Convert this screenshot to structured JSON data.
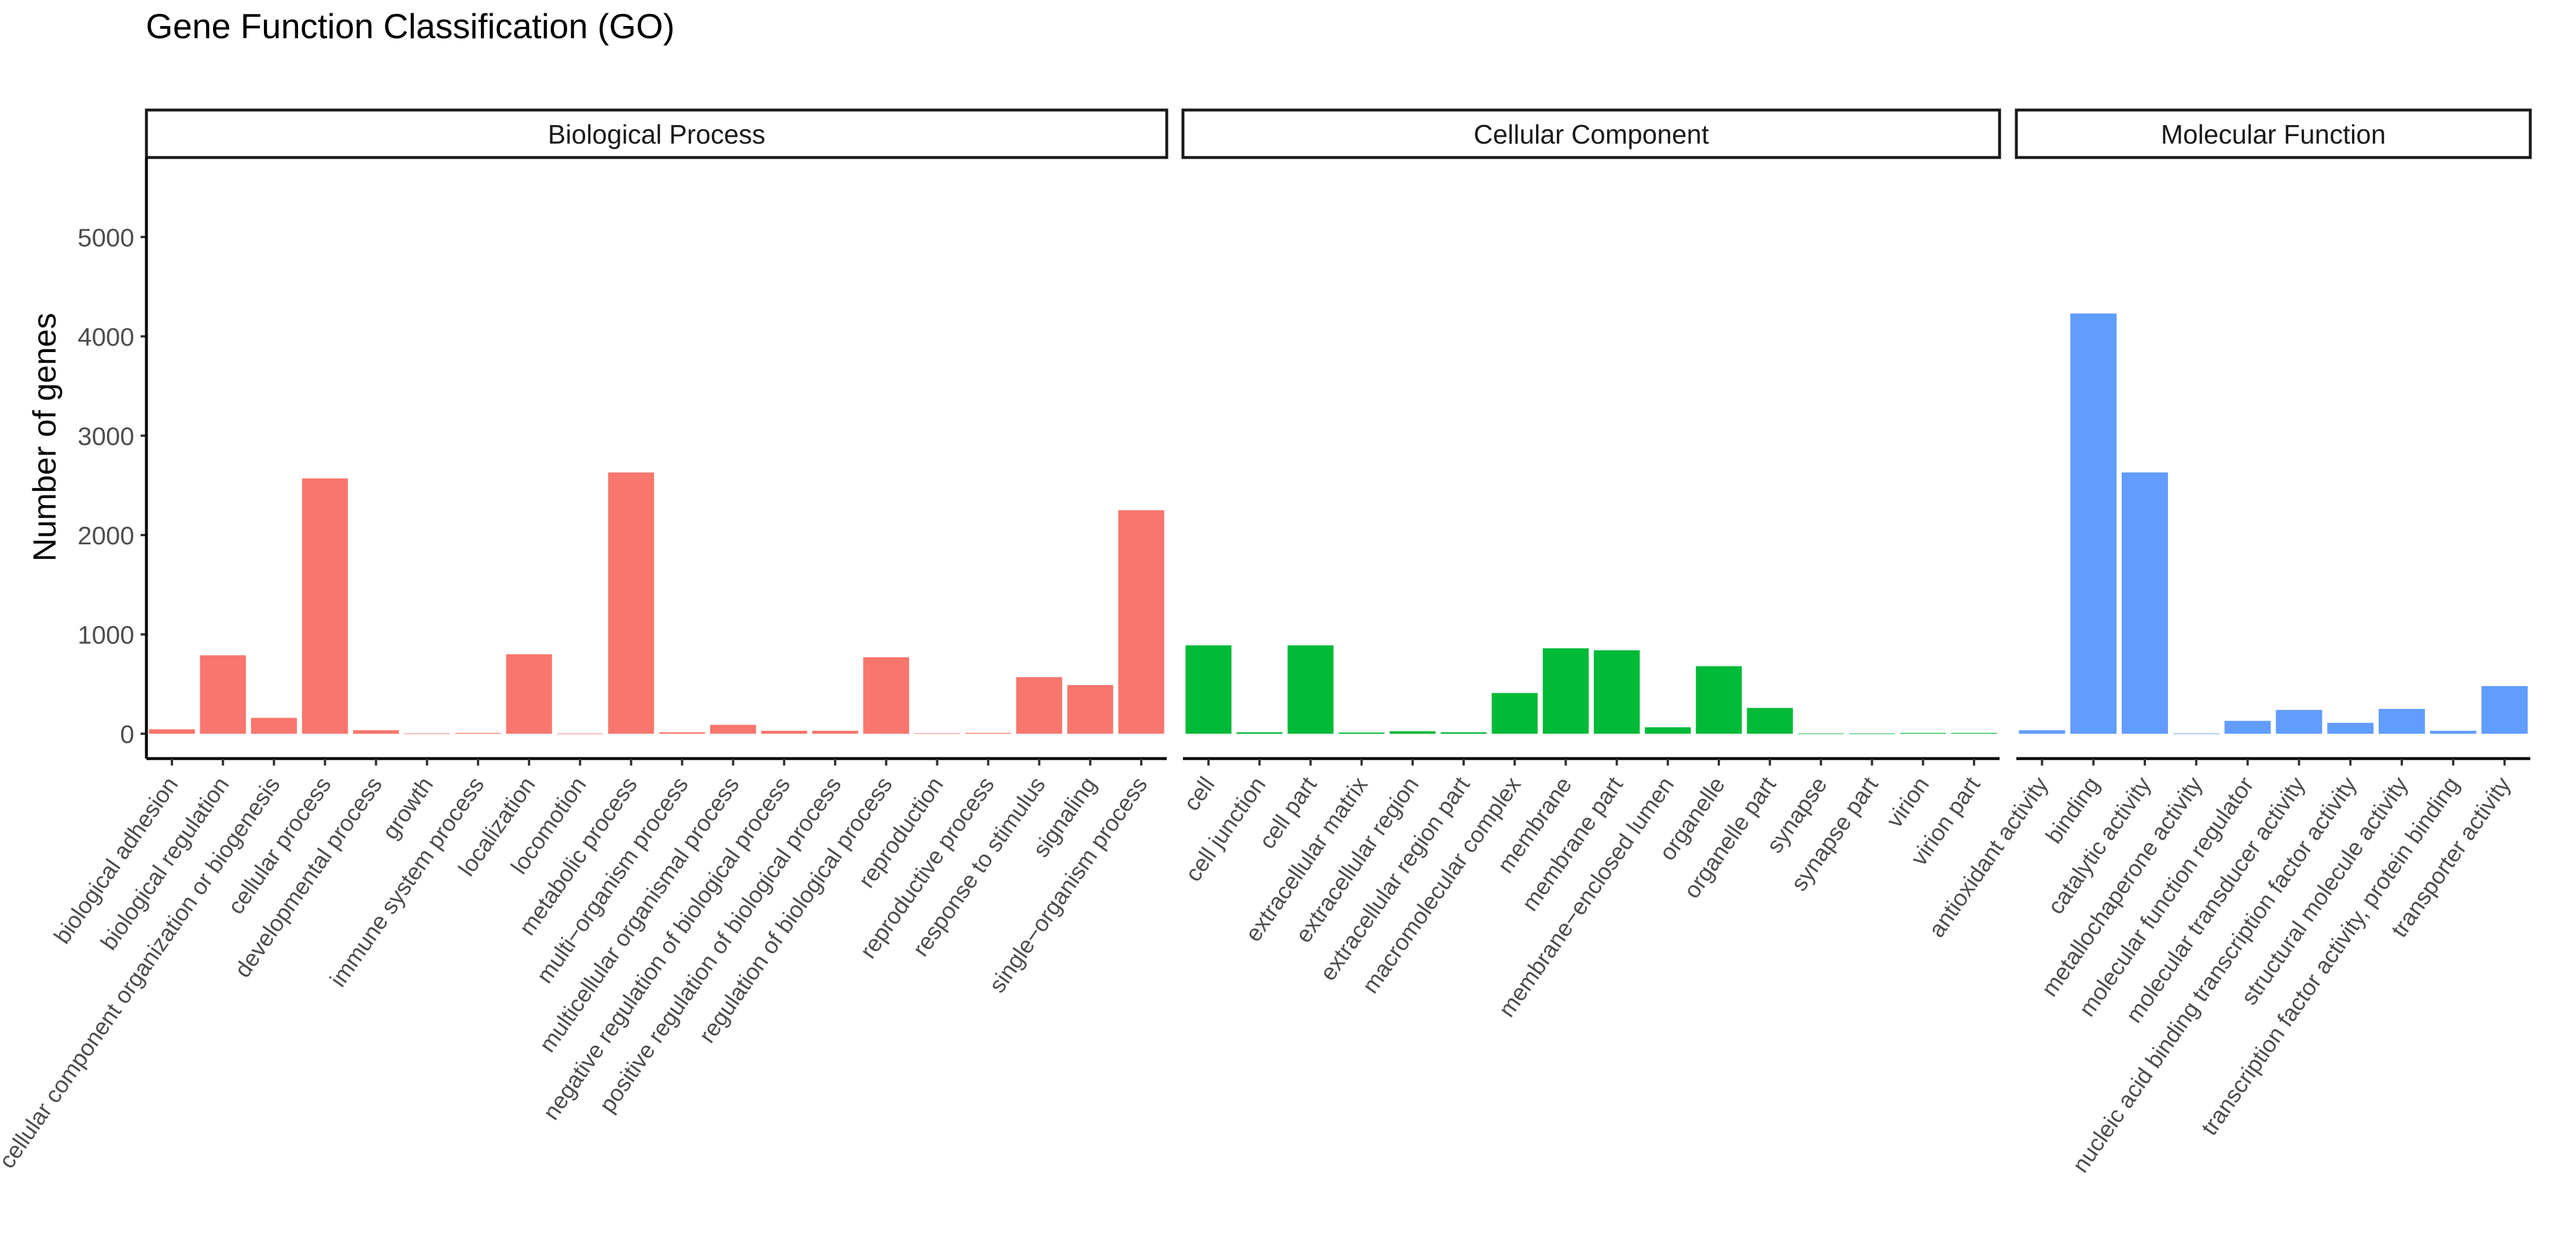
{
  "chart_data": {
    "type": "bar",
    "title": "Gene Function Classification (GO)",
    "ylabel": "Number of genes",
    "xlabel": "",
    "ylim": [
      -250,
      5800
    ],
    "yticks": [
      0,
      1000,
      2000,
      3000,
      4000,
      5000
    ],
    "grid": false,
    "legend": "none",
    "facets": [
      {
        "name": "Biological Process",
        "color": "#F8766D",
        "categories": [
          "biological adhesion",
          "biological regulation",
          "cellular component organization or biogenesis",
          "cellular process",
          "developmental process",
          "growth",
          "immune system process",
          "localization",
          "locomotion",
          "metabolic process",
          "multi−organism process",
          "multicellular organismal process",
          "negative regulation of biological process",
          "positive regulation of biological process",
          "regulation of biological process",
          "reproduction",
          "reproductive process",
          "response to stimulus",
          "signaling",
          "single−organism process"
        ],
        "values": [
          45,
          790,
          160,
          2570,
          35,
          3,
          8,
          800,
          2,
          2630,
          15,
          90,
          30,
          30,
          770,
          5,
          8,
          570,
          490,
          2250
        ]
      },
      {
        "name": "Cellular Component",
        "color": "#00BA38",
        "categories": [
          "cell",
          "cell junction",
          "cell part",
          "extracellular matrix",
          "extracellular region",
          "extracellular region part",
          "macromolecular complex",
          "membrane",
          "membrane part",
          "membrane−enclosed lumen",
          "organelle",
          "organelle part",
          "synapse",
          "synapse part",
          "virion",
          "virion part"
        ],
        "values": [
          890,
          15,
          890,
          12,
          25,
          15,
          410,
          860,
          840,
          65,
          680,
          260,
          3,
          3,
          8,
          8
        ]
      },
      {
        "name": "Molecular Function",
        "color": "#619CFF",
        "categories": [
          "antioxidant activity",
          "binding",
          "catalytic activity",
          "metallochaperone activity",
          "molecular function regulator",
          "molecular transducer activity",
          "nucleic acid binding transcription factor activity",
          "structural molecule activity",
          "transcription factor activity, protein binding",
          "transporter activity"
        ],
        "values": [
          35,
          4230,
          2630,
          2,
          130,
          240,
          110,
          250,
          30,
          480
        ]
      }
    ]
  }
}
